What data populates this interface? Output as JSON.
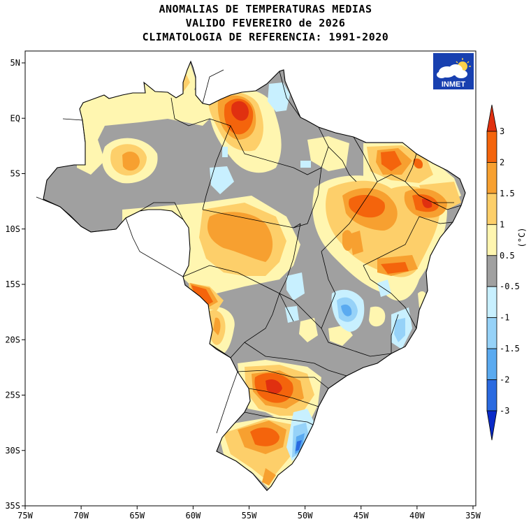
{
  "titles": {
    "line1": "ANOMALIAS DE TEMPERATURAS MEDIAS",
    "line2": "VALIDO FEVEREIRO de 2026",
    "line3": "CLIMATOLOGIA DE REFERENCIA: 1991-2020"
  },
  "logo": {
    "text": "INMET",
    "icon": "cloud-sun-icon"
  },
  "axes": {
    "lat_labels": [
      "5N",
      "EQ",
      "5S",
      "10S",
      "15S",
      "20S",
      "25S",
      "30S",
      "35S"
    ],
    "lon_labels": [
      "75W",
      "70W",
      "65W",
      "60W",
      "55W",
      "50W",
      "45W",
      "40W",
      "35W"
    ],
    "lat_range": [
      5,
      -35
    ],
    "lon_range": [
      -75,
      -35
    ]
  },
  "colorbar": {
    "unit": "(°C)",
    "levels": [
      "3",
      "2",
      "1.5",
      "1",
      "0.5",
      "-0.5",
      "-1",
      "-1.5",
      "-2",
      "-3"
    ],
    "colors": [
      "#e03010",
      "#f4640c",
      "#f7a030",
      "#fdcf6a",
      "#fff6b0",
      "#a0a0a0",
      "#c8f0ff",
      "#96d2f8",
      "#5aaaf0",
      "#2a6ae0",
      "#0a2ac8"
    ]
  },
  "map_colors": {
    "background": "#ffffff",
    "gray": "#a0a0a0",
    "border": "#000000"
  }
}
